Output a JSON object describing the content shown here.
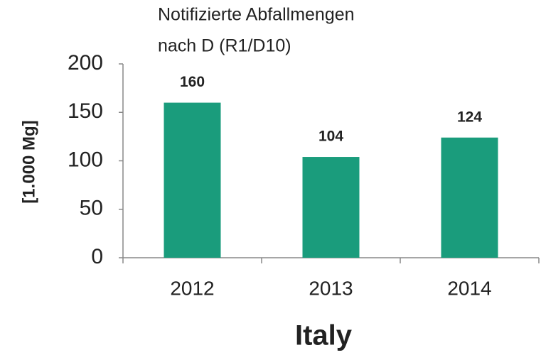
{
  "chart_data": {
    "type": "bar",
    "title": [
      "Notifizierte Abfallmengen",
      "nach D (R1/D10)"
    ],
    "y_label": "[1.000 Mg]",
    "x_label": "Italy",
    "categories": [
      "2012",
      "2013",
      "2014"
    ],
    "values": [
      160,
      104,
      124
    ],
    "color": "#1a9c7c",
    "ylim": [
      0,
      200
    ],
    "yticks": [
      0,
      50,
      100,
      150,
      200
    ],
    "grid": false
  }
}
